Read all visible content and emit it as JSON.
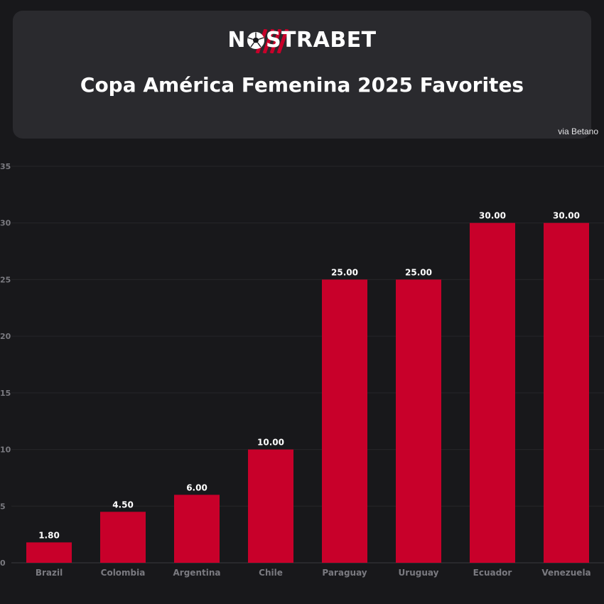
{
  "brand": {
    "logo_text": "NOSTRABET",
    "logo_prefix": "N",
    "logo_suffix": "STRABET",
    "accent_color": "#c8002a"
  },
  "source_note": "via Betano",
  "chart_data": {
    "type": "bar",
    "title": "Copa América Femenina 2025 Favorites",
    "xlabel": "",
    "ylabel": "",
    "categories": [
      "Brazil",
      "Colombia",
      "Argentina",
      "Chile",
      "Paraguay",
      "Uruguay",
      "Ecuador",
      "Venezuela"
    ],
    "values": [
      1.8,
      4.5,
      6.0,
      10.0,
      25.0,
      25.0,
      30.0,
      30.0
    ],
    "value_labels": [
      "1.80",
      "4.50",
      "6.00",
      "10.00",
      "25.00",
      "25.00",
      "30.00",
      "30.00"
    ],
    "ylim": [
      0,
      35
    ],
    "yticks": [
      0,
      5,
      10,
      15,
      20,
      25,
      30,
      35
    ],
    "grid": true,
    "bar_color": "#c8002a"
  }
}
